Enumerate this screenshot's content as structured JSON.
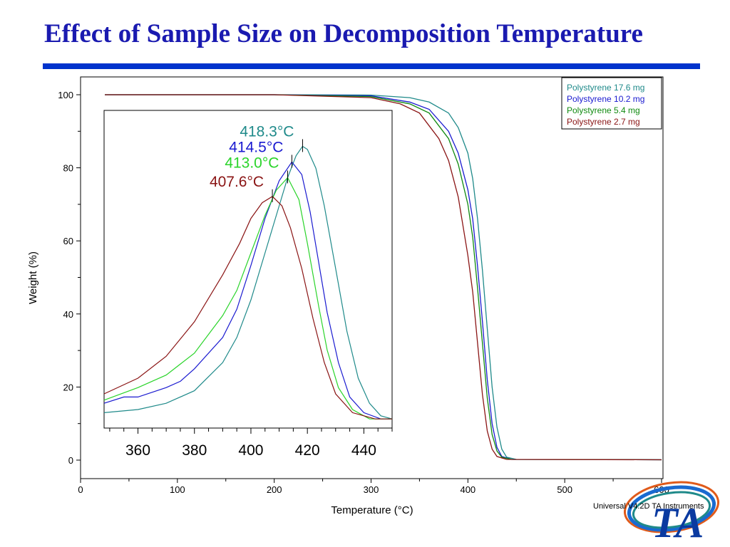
{
  "slide": {
    "title": "Effect of Sample Size on Decomposition Temperature",
    "footer": "Universal V4.2D TA Instruments",
    "logo_text": "TA"
  },
  "chart_data": [
    {
      "type": "line",
      "xlabel": "Temperature (°C)",
      "ylabel": "Weight (%)",
      "xlim": [
        0,
        600
      ],
      "ylim": [
        -5,
        105
      ],
      "xticks": [
        0,
        100,
        200,
        300,
        400,
        500,
        600
      ],
      "yticks": [
        0,
        20,
        40,
        60,
        80,
        100
      ],
      "grid": false,
      "legend_position": "top-right",
      "series": [
        {
          "name": "Polystyrene 17.6 mg",
          "color": "#1f8a8a",
          "x": [
            25,
            200,
            300,
            340,
            360,
            380,
            390,
            400,
            405,
            410,
            415,
            420,
            425,
            430,
            435,
            440,
            450,
            600
          ],
          "y": [
            100,
            100,
            99.9,
            99.2,
            98,
            95,
            91,
            84,
            77,
            66,
            52,
            36,
            20,
            9,
            3,
            0.8,
            0.2,
            0.1
          ]
        },
        {
          "name": "Polystyrene 10.2 mg",
          "color": "#1a1ad0",
          "x": [
            25,
            200,
            300,
            340,
            360,
            380,
            390,
            400,
            405,
            410,
            415,
            420,
            425,
            430,
            435,
            445,
            600
          ],
          "y": [
            100,
            100,
            99.7,
            98,
            96,
            90,
            84,
            74,
            66,
            53,
            38,
            22,
            10,
            3.5,
            1,
            0.2,
            0.1
          ]
        },
        {
          "name": "Polystyrene 5.4 mg",
          "color": "#108a10",
          "x": [
            25,
            200,
            300,
            340,
            360,
            380,
            390,
            400,
            405,
            410,
            415,
            420,
            425,
            430,
            435,
            445,
            600
          ],
          "y": [
            100,
            100,
            99.5,
            97.5,
            95,
            88,
            81,
            70,
            61,
            47,
            32,
            17,
            7,
            2.5,
            0.8,
            0.2,
            0.1
          ]
        },
        {
          "name": "Polystyrene 2.7 mg",
          "color": "#8a1414",
          "x": [
            25,
            200,
            300,
            330,
            350,
            370,
            380,
            390,
            400,
            405,
            410,
            415,
            420,
            425,
            430,
            440,
            600
          ],
          "y": [
            100,
            100,
            99.2,
            97.5,
            95,
            88,
            82,
            72,
            56,
            46,
            32,
            18,
            8,
            3,
            1,
            0.2,
            0.1
          ]
        }
      ]
    },
    {
      "type": "line",
      "xlim": [
        348,
        450
      ],
      "ylim": [
        0,
        100
      ],
      "xticks": [
        360,
        380,
        400,
        420,
        440
      ],
      "annotations": [
        {
          "text": "418.3°C",
          "x": 418.3,
          "y": 89,
          "color": "#1f8a8a"
        },
        {
          "text": "414.5°C",
          "x": 414.5,
          "y": 84,
          "color": "#1a1ad0"
        },
        {
          "text": "413.0°C",
          "x": 413.0,
          "y": 79,
          "color": "#2ad42a"
        },
        {
          "text": "407.6°C",
          "x": 407.6,
          "y": 73,
          "color": "#8a1414"
        }
      ],
      "series": [
        {
          "color": "#1f8a8a",
          "x": [
            348,
            360,
            370,
            380,
            390,
            395,
            400,
            405,
            410,
            413,
            416,
            418.3,
            420,
            423,
            426,
            430,
            434,
            438,
            442,
            446,
            450
          ],
          "y": [
            4,
            5,
            7,
            11,
            20,
            28,
            40,
            55,
            70,
            79,
            86,
            89,
            88,
            82,
            70,
            50,
            30,
            15,
            7,
            3,
            2
          ]
        },
        {
          "color": "#1a1ad0",
          "x": [
            348,
            355,
            360,
            370,
            375,
            380,
            390,
            395,
            400,
            405,
            410,
            414.5,
            418,
            421,
            424,
            427,
            431,
            435,
            440,
            446,
            450
          ],
          "y": [
            7,
            9,
            9,
            12,
            14,
            18,
            28,
            37,
            51,
            66,
            78,
            84,
            80,
            68,
            52,
            36,
            20,
            9,
            4,
            2,
            2
          ]
        },
        {
          "color": "#2ad42a",
          "x": [
            348,
            360,
            370,
            380,
            390,
            395,
            400,
            405,
            409,
            413,
            417,
            420,
            424,
            427,
            431,
            436,
            442,
            450
          ],
          "y": [
            8,
            12,
            16,
            23,
            35,
            43,
            55,
            67,
            75,
            79,
            72,
            58,
            38,
            24,
            12,
            5,
            2,
            2
          ]
        },
        {
          "color": "#8a1414",
          "x": [
            348,
            360,
            370,
            380,
            390,
            396,
            400,
            404,
            407.6,
            411,
            414,
            418,
            422,
            426,
            430,
            436,
            444,
            450
          ],
          "y": [
            10,
            15,
            22,
            33,
            48,
            58,
            66,
            71,
            73,
            70,
            63,
            50,
            34,
            20,
            10,
            4,
            2,
            2
          ]
        }
      ]
    }
  ]
}
